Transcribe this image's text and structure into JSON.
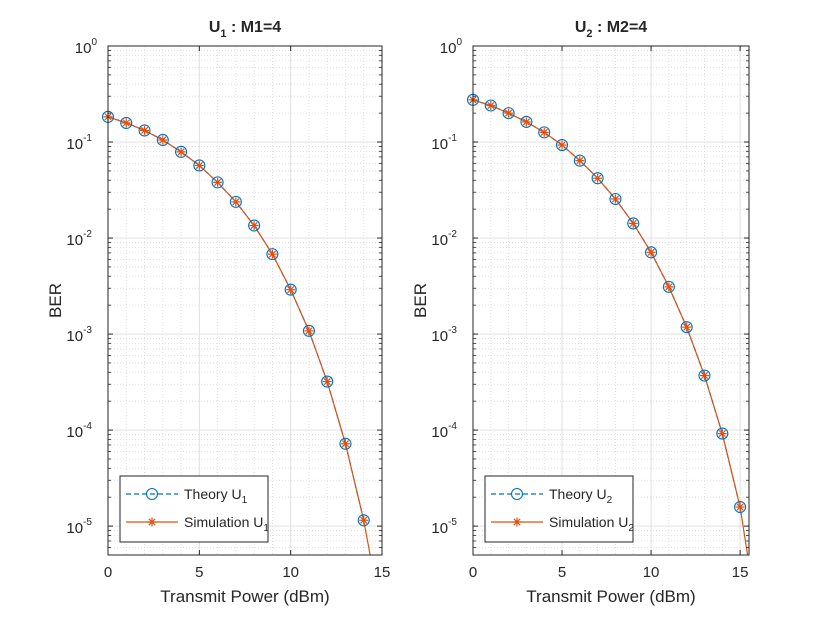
{
  "chart_data": [
    {
      "type": "line",
      "title": "U",
      "title_subscript": "1",
      "title_suffix": " : M1=4",
      "xlabel": "Transmit Power (dBm)",
      "ylabel": "BER",
      "yscale": "log",
      "xlim": [
        0,
        15
      ],
      "ylim": [
        5e-06,
        1
      ],
      "xticks": [
        "0",
        "5",
        "10",
        "15"
      ],
      "yticks": [
        {
          "base": "10",
          "exp": "0"
        },
        {
          "base": "10",
          "exp": "-1"
        },
        {
          "base": "10",
          "exp": "-2"
        },
        {
          "base": "10",
          "exp": "-3"
        },
        {
          "base": "10",
          "exp": "-4"
        },
        {
          "base": "10",
          "exp": "-5"
        }
      ],
      "grid": true,
      "legend_position": "bottom-left",
      "series": [
        {
          "name": "Theory U",
          "name_subscript": "1",
          "style": "dashed-circle",
          "color": "#0072BD",
          "x": [
            0,
            1,
            2,
            3,
            4,
            5,
            6,
            7,
            8,
            9,
            10,
            11,
            12,
            13,
            14
          ],
          "y": [
            0.183,
            0.158,
            0.132,
            0.105,
            0.079,
            0.057,
            0.038,
            0.0238,
            0.0135,
            0.0068,
            0.0029,
            0.00108,
            0.00032,
            7.2e-05,
            1.15e-05
          ]
        },
        {
          "name": "Simulation U",
          "name_subscript": "1",
          "style": "solid-asterisk",
          "color": "#D95319",
          "x": [
            0,
            1,
            2,
            3,
            4,
            5,
            6,
            7,
            8,
            9,
            10,
            11,
            12,
            13,
            14
          ],
          "y": [
            0.183,
            0.158,
            0.132,
            0.105,
            0.079,
            0.057,
            0.038,
            0.0238,
            0.0135,
            0.0068,
            0.0029,
            0.00108,
            0.00032,
            7.2e-05,
            1.15e-05
          ],
          "line_extends_to": {
            "x": 14.35,
            "y": 5e-06
          }
        }
      ]
    },
    {
      "type": "line",
      "title": "U",
      "title_subscript": "2",
      "title_suffix": " : M2=4",
      "xlabel": "Transmit Power (dBm)",
      "ylabel": "BER",
      "yscale": "log",
      "xlim": [
        0,
        15.5
      ],
      "ylim": [
        5e-06,
        1
      ],
      "xticks": [
        "0",
        "5",
        "10",
        "15"
      ],
      "yticks": [
        {
          "base": "10",
          "exp": "0"
        },
        {
          "base": "10",
          "exp": "-1"
        },
        {
          "base": "10",
          "exp": "-2"
        },
        {
          "base": "10",
          "exp": "-3"
        },
        {
          "base": "10",
          "exp": "-4"
        },
        {
          "base": "10",
          "exp": "-5"
        }
      ],
      "grid": true,
      "legend_position": "bottom-left",
      "series": [
        {
          "name": "Theory U",
          "name_subscript": "2",
          "style": "dashed-circle",
          "color": "#0072BD",
          "x": [
            0,
            1,
            2,
            3,
            4,
            5,
            6,
            7,
            8,
            9,
            10,
            11,
            12,
            13,
            14,
            15
          ],
          "y": [
            0.275,
            0.24,
            0.2,
            0.162,
            0.126,
            0.093,
            0.064,
            0.042,
            0.0255,
            0.0142,
            0.0071,
            0.0031,
            0.00118,
            0.00037,
            9.2e-05,
            1.58e-05
          ]
        },
        {
          "name": "Simulation U",
          "name_subscript": "2",
          "style": "solid-asterisk",
          "color": "#D95319",
          "x": [
            0,
            1,
            2,
            3,
            4,
            5,
            6,
            7,
            8,
            9,
            10,
            11,
            12,
            13,
            14,
            15
          ],
          "y": [
            0.275,
            0.24,
            0.2,
            0.162,
            0.126,
            0.093,
            0.064,
            0.042,
            0.0255,
            0.0142,
            0.0071,
            0.0031,
            0.00118,
            0.00037,
            9.2e-05,
            1.58e-05
          ],
          "line_extends_to": {
            "x": 15.42,
            "y": 5e-06
          }
        }
      ]
    }
  ]
}
